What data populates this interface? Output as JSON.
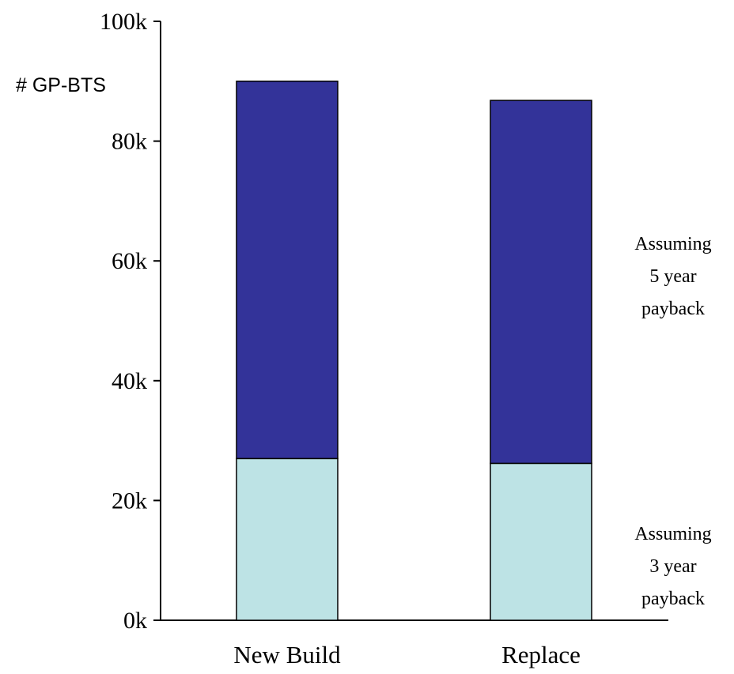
{
  "chart_data": {
    "type": "bar",
    "stacked": true,
    "categories": [
      "New Build",
      "Replace"
    ],
    "series": [
      {
        "values": [
          27,
          26.2
        ],
        "color": "#bde3e5"
      },
      {
        "values": [
          63,
          60.6
        ],
        "color": "#333399"
      }
    ],
    "ylabel": "# GP-BTS",
    "ylim": [
      0,
      100
    ],
    "yticks": [
      0,
      20,
      40,
      60,
      80,
      100
    ],
    "ytick_labels": [
      "0k",
      "20k",
      "40k",
      "60k",
      "80k",
      "100k"
    ],
    "annotations": [
      {
        "lines": [
          "Assuming",
          "5 year",
          "payback"
        ]
      },
      {
        "lines": [
          "Assuming",
          "3 year",
          "payback"
        ]
      }
    ]
  }
}
